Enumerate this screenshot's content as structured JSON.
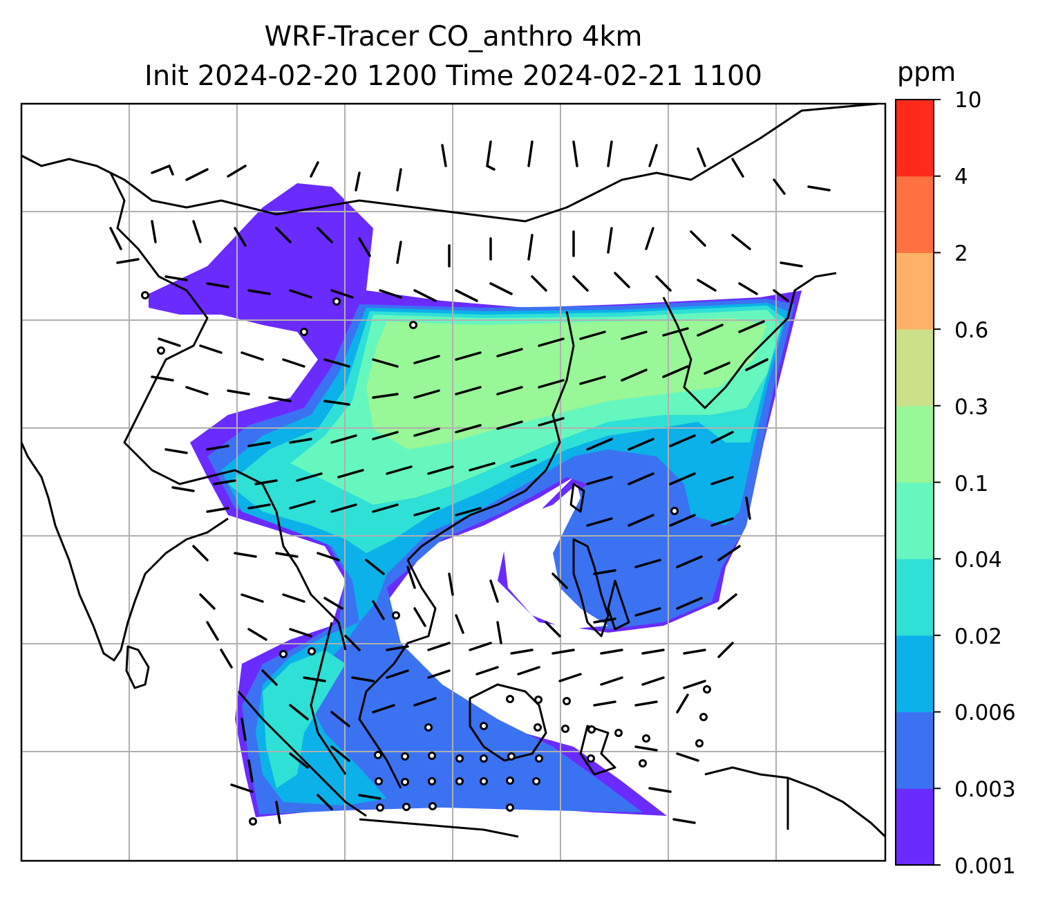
{
  "title": {
    "line1": "WRF-Tracer CO_anthro 4km",
    "line2": "Init 2024-02-20 1200 Time 2024-02-21 1100"
  },
  "colorbar": {
    "unit": "ppm",
    "levels": [
      "0.001",
      "0.003",
      "0.006",
      "0.02",
      "0.04",
      "0.1",
      "0.3",
      "0.6",
      "2",
      "4",
      "10"
    ],
    "colors": [
      "#6a2bff",
      "#3b72f2",
      "#0bb1e8",
      "#2ee0d6",
      "#66f7bf",
      "#98f796",
      "#cce08a",
      "#ffb265",
      "#ff7140",
      "#ff2a1a"
    ]
  },
  "map": {
    "field": "CO_anthro",
    "gridlines": true,
    "coastline_color": "#000000",
    "barb_color": "#000000"
  }
}
